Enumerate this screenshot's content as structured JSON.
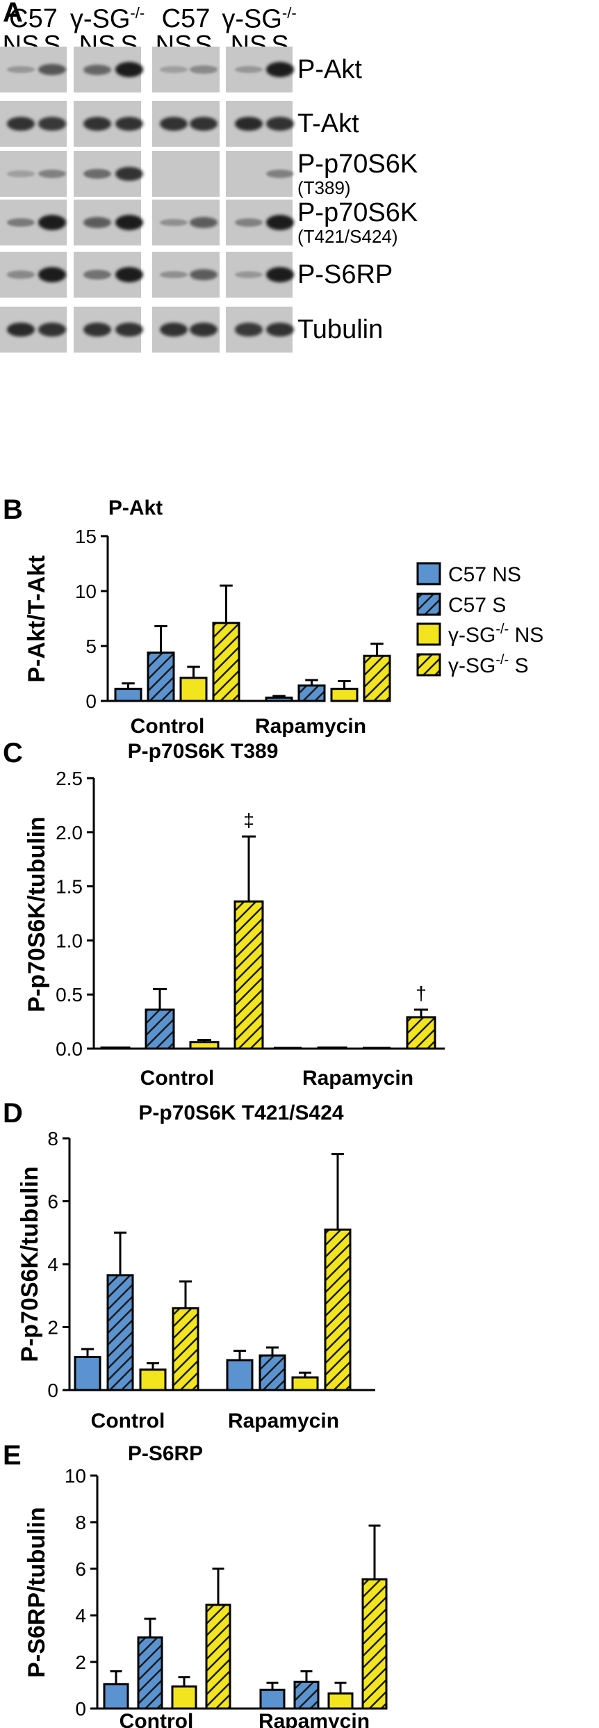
{
  "panel_a": {
    "letter": "A",
    "groups": [
      {
        "label": "C57",
        "sup": "",
        "lanes": [
          "NS",
          "S"
        ]
      },
      {
        "label": "γ-SG",
        "sup": "-/-",
        "lanes": [
          "NS",
          "S"
        ]
      },
      {
        "label": "C57",
        "sup": "",
        "lanes": [
          "NS",
          "S"
        ]
      },
      {
        "label": "γ-SG",
        "sup": "-/-",
        "lanes": [
          "NS",
          "S"
        ]
      }
    ],
    "rows": [
      {
        "label": "P-Akt",
        "sub": "",
        "intensity": [
          0.15,
          0.6,
          0.5,
          1.0,
          0.1,
          0.25,
          0.15,
          1.0
        ]
      },
      {
        "label": "T-Akt",
        "sub": "",
        "intensity": [
          0.85,
          0.8,
          0.85,
          0.85,
          0.85,
          0.85,
          0.9,
          0.85
        ]
      },
      {
        "label": "P-p70S6K",
        "sub": "(T389)",
        "intensity": [
          0.1,
          0.3,
          0.45,
          0.85,
          0.0,
          0.0,
          0.0,
          0.3
        ]
      },
      {
        "label": "P-p70S6K",
        "sub": "(T421/S424)",
        "intensity": [
          0.35,
          1.0,
          0.55,
          1.0,
          0.2,
          0.55,
          0.3,
          1.0
        ]
      },
      {
        "label": "P-S6RP",
        "sub": "",
        "intensity": [
          0.25,
          1.0,
          0.4,
          1.0,
          0.2,
          0.55,
          0.15,
          1.0
        ]
      },
      {
        "label": "Tubulin",
        "sub": "",
        "intensity": [
          0.9,
          0.85,
          0.85,
          0.85,
          0.85,
          0.85,
          0.8,
          0.85
        ]
      }
    ]
  },
  "legend": [
    {
      "text": "C57 NS",
      "gamma": false,
      "sup": "",
      "suffix": ""
    },
    {
      "text": "C57 S",
      "gamma": false,
      "sup": "",
      "suffix": ""
    },
    {
      "text": "γ-SG",
      "gamma": true,
      "sup": "-/-",
      "suffix": " NS"
    },
    {
      "text": "γ-SG",
      "gamma": true,
      "sup": "-/-",
      "suffix": " S"
    }
  ],
  "colors": {
    "c57": "#5a93cf",
    "gamma": "#f2e51d",
    "blot_bg": "#c6c6c6",
    "band": "#1c1c1c"
  },
  "chart_data": [
    {
      "letter": "B",
      "type": "bar",
      "title": "P-Akt",
      "ylabel": "P-Akt/T-Akt",
      "categories": [
        "Control",
        "Rapamycin"
      ],
      "ylim": [
        0,
        15
      ],
      "yticks": [
        "0",
        "5",
        "10",
        "15"
      ],
      "yticks_val": [
        0,
        5,
        10,
        15
      ],
      "series": [
        {
          "name": "C57 NS",
          "values": [
            1.1,
            0.3
          ],
          "errors": [
            0.5,
            0.15
          ]
        },
        {
          "name": "C57 S",
          "values": [
            4.4,
            1.4
          ],
          "errors": [
            2.4,
            0.5
          ]
        },
        {
          "name": "γ-SG-/- NS",
          "values": [
            2.1,
            1.1
          ],
          "errors": [
            1.0,
            0.7
          ]
        },
        {
          "name": "γ-SG-/- S",
          "values": [
            7.1,
            4.1
          ],
          "errors": [
            3.4,
            1.1
          ]
        }
      ],
      "annotations": [
        "",
        "",
        "",
        "",
        "",
        "",
        "",
        ""
      ]
    },
    {
      "letter": "C",
      "type": "bar",
      "title": "P-p70S6K T389",
      "ylabel": "P-p70S6K/tubulin",
      "categories": [
        "Control",
        "Rapamycin"
      ],
      "ylim": [
        0,
        2.5
      ],
      "yticks": [
        "0.0",
        "0.5",
        "1.0",
        "1.5",
        "2.0",
        "2.5"
      ],
      "yticks_val": [
        0,
        0.5,
        1.0,
        1.5,
        2.0,
        2.5
      ],
      "series": [
        {
          "name": "C57 NS",
          "values": [
            0.01,
            0.0
          ],
          "errors": [
            0.0,
            0.0
          ]
        },
        {
          "name": "C57 S",
          "values": [
            0.36,
            0.01
          ],
          "errors": [
            0.19,
            0.0
          ]
        },
        {
          "name": "γ-SG-/- NS",
          "values": [
            0.06,
            0.0
          ],
          "errors": [
            0.02,
            0.0
          ]
        },
        {
          "name": "γ-SG-/- S",
          "values": [
            1.36,
            0.29
          ],
          "errors": [
            0.6,
            0.07
          ]
        }
      ],
      "annotations": [
        "",
        "",
        "",
        "‡",
        "",
        "",
        "",
        "†"
      ]
    },
    {
      "letter": "D",
      "type": "bar",
      "title": "P-p70S6K T421/S424",
      "ylabel": "P-p70S6K/tubulin",
      "categories": [
        "Control",
        "Rapamycin"
      ],
      "ylim": [
        0,
        8
      ],
      "yticks": [
        "0",
        "2",
        "4",
        "6",
        "8"
      ],
      "yticks_val": [
        0,
        2,
        4,
        6,
        8
      ],
      "series": [
        {
          "name": "C57 NS",
          "values": [
            1.05,
            0.95
          ],
          "errors": [
            0.25,
            0.3
          ]
        },
        {
          "name": "C57 S",
          "values": [
            3.65,
            1.1
          ],
          "errors": [
            1.35,
            0.25
          ]
        },
        {
          "name": "γ-SG-/- NS",
          "values": [
            0.65,
            0.4
          ],
          "errors": [
            0.2,
            0.15
          ]
        },
        {
          "name": "γ-SG-/- S",
          "values": [
            2.6,
            5.1
          ],
          "errors": [
            0.85,
            2.4
          ]
        }
      ],
      "annotations": [
        "",
        "",
        "",
        "",
        "",
        "",
        "",
        ""
      ]
    },
    {
      "letter": "E",
      "type": "bar",
      "title": "P-S6RP",
      "ylabel": "P-S6RP/tubulin",
      "categories": [
        "Control",
        "Rapamycin"
      ],
      "ylim": [
        0,
        10
      ],
      "yticks": [
        "0",
        "2",
        "4",
        "6",
        "8",
        "10"
      ],
      "yticks_val": [
        0,
        2,
        4,
        6,
        8,
        10
      ],
      "series": [
        {
          "name": "C57 NS",
          "values": [
            1.05,
            0.8
          ],
          "errors": [
            0.55,
            0.3
          ]
        },
        {
          "name": "C57 S",
          "values": [
            3.05,
            1.15
          ],
          "errors": [
            0.8,
            0.45
          ]
        },
        {
          "name": "γ-SG-/- NS",
          "values": [
            0.95,
            0.65
          ],
          "errors": [
            0.4,
            0.45
          ]
        },
        {
          "name": "γ-SG-/- S",
          "values": [
            4.45,
            5.55
          ],
          "errors": [
            1.55,
            2.3
          ]
        }
      ],
      "annotations": [
        "",
        "",
        "",
        "",
        "",
        "",
        "",
        ""
      ]
    }
  ]
}
